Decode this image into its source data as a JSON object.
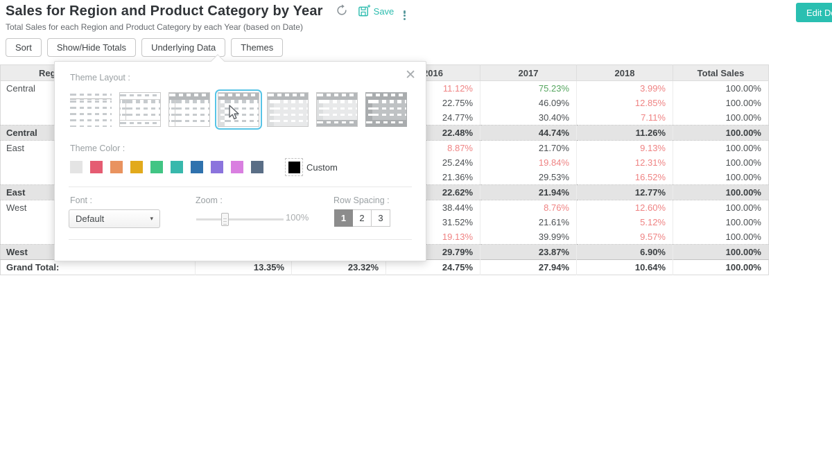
{
  "header": {
    "title": "Sales for Region and Product Category by Year",
    "subtitle": "Total Sales for each Region and Product Category by each Year (based on Date)",
    "save_label": "Save",
    "edit_button_label": "Edit De",
    "accent_color": "#2abfb1"
  },
  "toolbar": {
    "buttons": [
      "Sort",
      "Show/Hide Totals",
      "Underlying Data",
      "Themes"
    ]
  },
  "themes_popup": {
    "layout_label": "Theme Layout :",
    "selected_layout_index": 3,
    "color_label": "Theme Color :",
    "swatches": [
      "#e4e4e4",
      "#e55c72",
      "#e9935f",
      "#e2aa1c",
      "#41c584",
      "#38b8ac",
      "#2f72ae",
      "#8b74dd",
      "#d97fe0",
      "#5a6e86"
    ],
    "custom_label": "Custom",
    "custom_color": "#000000",
    "font_label": "Font :",
    "font_value": "Default",
    "zoom_label": "Zoom :",
    "zoom_value": "100%",
    "row_spacing_label": "Row Spacing :",
    "row_spacing_options": [
      "1",
      "2",
      "3"
    ],
    "row_spacing_selected": "1",
    "close_glyph": "✕",
    "caret_glyph": "▾"
  },
  "table": {
    "columns": [
      "Region",
      "",
      "",
      "",
      "2016",
      "2017",
      "2018",
      "Total Sales"
    ],
    "value_colors": {
      "r": "#ef8383",
      "g": "#55a55f"
    },
    "rows": [
      {
        "type": "data",
        "region": "Central",
        "values": [
          "",
          "",
          "11.12%",
          "75.23%",
          "3.99%",
          "100.00%"
        ],
        "colors": [
          "",
          "",
          "r",
          "g",
          "r",
          ""
        ]
      },
      {
        "type": "data",
        "region": "",
        "values": [
          "",
          "",
          "22.75%",
          "46.09%",
          "12.85%",
          "100.00%"
        ],
        "colors": [
          "",
          "",
          "",
          "",
          "r",
          ""
        ]
      },
      {
        "type": "data",
        "region": "",
        "values": [
          "",
          "",
          "24.77%",
          "30.40%",
          "7.11%",
          "100.00%"
        ],
        "colors": [
          "",
          "",
          "",
          "",
          "r",
          ""
        ]
      },
      {
        "type": "subtotal",
        "region": "Central",
        "values": [
          "",
          "",
          "22.48%",
          "44.74%",
          "11.26%",
          "100.00%"
        ],
        "colors": [
          "",
          "",
          "",
          "",
          "",
          ""
        ]
      },
      {
        "type": "data",
        "region": "East",
        "values": [
          "",
          "",
          "8.87%",
          "21.70%",
          "9.13%",
          "100.00%"
        ],
        "colors": [
          "",
          "",
          "r",
          "",
          "r",
          ""
        ]
      },
      {
        "type": "data",
        "region": "",
        "values": [
          "",
          "",
          "25.24%",
          "19.84%",
          "12.31%",
          "100.00%"
        ],
        "colors": [
          "",
          "",
          "",
          "r",
          "r",
          ""
        ]
      },
      {
        "type": "data",
        "region": "",
        "values": [
          "",
          "",
          "21.36%",
          "29.53%",
          "16.52%",
          "100.00%"
        ],
        "colors": [
          "",
          "",
          "",
          "",
          "r",
          ""
        ]
      },
      {
        "type": "subtotal",
        "region": "East",
        "values": [
          "",
          "",
          "22.62%",
          "21.94%",
          "12.77%",
          "100.00%"
        ],
        "colors": [
          "",
          "",
          "",
          "",
          "",
          ""
        ]
      },
      {
        "type": "data",
        "region": "West",
        "values": [
          "",
          "",
          "38.44%",
          "8.76%",
          "12.60%",
          "100.00%"
        ],
        "colors": [
          "",
          "",
          "",
          "r",
          "r",
          ""
        ]
      },
      {
        "type": "data",
        "region": "",
        "values": [
          "",
          "",
          "31.52%",
          "21.61%",
          "5.12%",
          "100.00%"
        ],
        "colors": [
          "",
          "",
          "",
          "",
          "r",
          ""
        ]
      },
      {
        "type": "data",
        "region": "",
        "values": [
          "",
          "",
          "19.13%",
          "39.99%",
          "9.57%",
          "100.00%"
        ],
        "colors": [
          "",
          "",
          "r",
          "",
          "r",
          ""
        ]
      },
      {
        "type": "subtotal",
        "region": "West",
        "values": [
          "",
          "",
          "29.79%",
          "23.87%",
          "6.90%",
          "100.00%"
        ],
        "colors": [
          "",
          "",
          "",
          "",
          "",
          ""
        ]
      },
      {
        "type": "grandtotal",
        "region": "Grand Total:",
        "values": [
          "13.35%",
          "23.32%",
          "24.75%",
          "27.94%",
          "10.64%",
          "100.00%"
        ],
        "colors": [
          "",
          "",
          "",
          "",
          "",
          ""
        ]
      }
    ]
  }
}
